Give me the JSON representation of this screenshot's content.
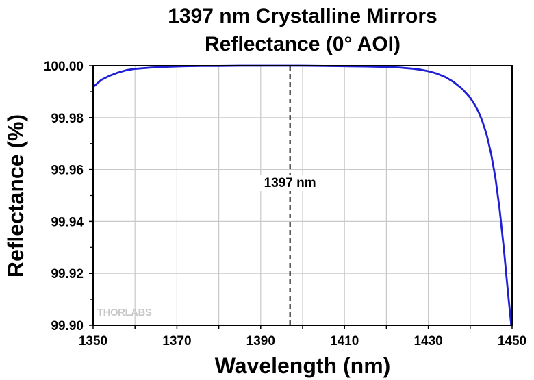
{
  "chart_data": {
    "type": "line",
    "title": "1397 nm Crystalline Mirrors",
    "subtitle": "Reflectance (0° AOI)",
    "xlabel": "Wavelength (nm)",
    "ylabel": "Reflectance (%)",
    "xlim": [
      1350,
      1450
    ],
    "ylim": [
      99.9,
      100.0
    ],
    "x_ticks": [
      "1350",
      "1370",
      "1390",
      "1410",
      "1430",
      "1450"
    ],
    "y_ticks": [
      "99.90",
      "99.92",
      "99.94",
      "99.96",
      "99.98",
      "100.00"
    ],
    "grid": true,
    "series": [
      {
        "color": "#1f1fd6",
        "x": [
          1350,
          1352,
          1354,
          1356,
          1358,
          1360,
          1364,
          1368,
          1372,
          1376,
          1380,
          1385,
          1390,
          1395,
          1397,
          1400,
          1405,
          1410,
          1415,
          1420,
          1423,
          1426,
          1428,
          1430,
          1432,
          1434,
          1436,
          1438,
          1440,
          1441,
          1442,
          1443,
          1444,
          1445,
          1446,
          1447,
          1448,
          1448.7,
          1449.3,
          1449.8
        ],
        "y": [
          99.9918,
          99.9946,
          99.9962,
          99.9974,
          99.9983,
          99.9988,
          99.9993,
          99.9996,
          99.9998,
          99.9999,
          99.9999,
          100.0,
          100.0,
          100.0,
          100.0,
          100.0,
          99.9999,
          99.9998,
          99.9997,
          99.9995,
          99.9993,
          99.9989,
          99.9985,
          99.9979,
          99.997,
          99.9957,
          99.9938,
          99.9912,
          99.9877,
          99.9852,
          99.9822,
          99.9782,
          99.973,
          99.966,
          99.957,
          99.945,
          99.93,
          99.918,
          99.908,
          99.9
        ]
      }
    ],
    "annotations": [
      {
        "text": "1397 nm",
        "x": 1397,
        "line": "dashed vertical"
      }
    ]
  },
  "watermark": "THORLABS"
}
